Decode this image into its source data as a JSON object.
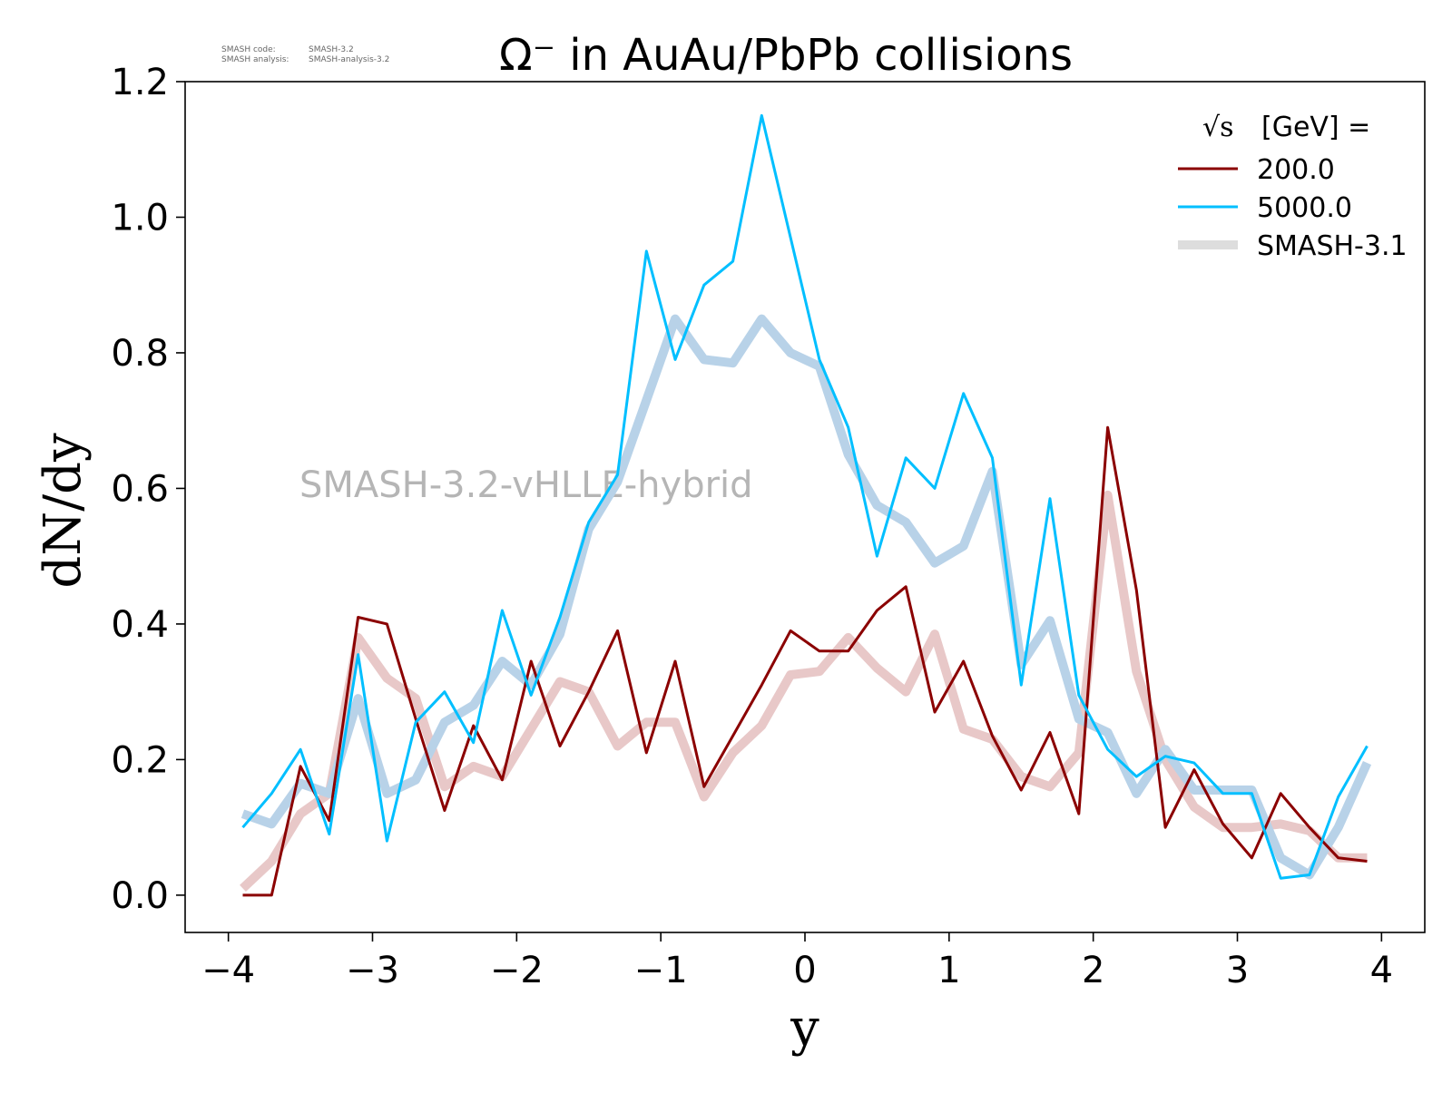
{
  "chart_data": {
    "type": "line",
    "title": "Ω⁻ in AuAu/PbPb collisions",
    "xlabel": "y",
    "ylabel": "dN/dy",
    "xlim": [
      -4.3,
      4.3
    ],
    "ylim": [
      -0.055,
      1.2
    ],
    "xticks": [
      -4,
      -3,
      -2,
      -1,
      0,
      1,
      2,
      3,
      4
    ],
    "xtick_labels": [
      "−4",
      "−3",
      "−2",
      "−1",
      "0",
      "1",
      "2",
      "3",
      "4"
    ],
    "yticks": [
      0.0,
      0.2,
      0.4,
      0.6,
      0.8,
      1.0,
      1.2
    ],
    "ytick_labels": [
      "0.0",
      "0.2",
      "0.4",
      "0.6",
      "0.8",
      "1.0",
      "1.2"
    ],
    "grid": false,
    "legend_position": "top-right",
    "legend_title_symbol": "√s",
    "legend_title_text": "[GeV] =",
    "watermark": "SMASH-3.2-vHLLE-hybrid",
    "version_info": [
      {
        "label": "SMASH code:",
        "value": "SMASH-3.2"
      },
      {
        "label": "SMASH analysis:",
        "value": "SMASH-analysis-3.2"
      }
    ],
    "x": [
      -3.9,
      -3.7,
      -3.5,
      -3.3,
      -3.1,
      -2.9,
      -2.7,
      -2.5,
      -2.3,
      -2.1,
      -1.9,
      -1.7,
      -1.5,
      -1.3,
      -1.1,
      -0.9,
      -0.7,
      -0.5,
      -0.3,
      -0.1,
      0.1,
      0.3,
      0.5,
      0.7,
      0.9,
      1.1,
      1.3,
      1.5,
      1.7,
      1.9,
      2.1,
      2.3,
      2.5,
      2.7,
      2.9,
      3.1,
      3.3,
      3.5,
      3.7,
      3.9
    ],
    "series": [
      {
        "name": "200.0",
        "color": "#8b0000",
        "style": "current",
        "values": [
          0.0,
          0.0,
          0.19,
          0.11,
          0.41,
          0.4,
          0.26,
          0.125,
          0.25,
          0.17,
          0.345,
          0.22,
          0.3,
          0.39,
          0.21,
          0.345,
          0.16,
          0.235,
          0.31,
          0.39,
          0.36,
          0.36,
          0.42,
          0.455,
          0.27,
          0.345,
          0.235,
          0.155,
          0.24,
          0.12,
          0.69,
          0.45,
          0.1,
          0.185,
          0.105,
          0.055,
          0.15,
          0.1,
          0.055,
          0.05
        ]
      },
      {
        "name": "5000.0",
        "color": "#00bfff",
        "style": "current",
        "values": [
          0.1,
          0.15,
          0.215,
          0.09,
          0.355,
          0.08,
          0.255,
          0.3,
          0.225,
          0.42,
          0.295,
          0.41,
          0.55,
          0.62,
          0.95,
          0.79,
          0.9,
          0.935,
          1.15,
          0.97,
          0.79,
          0.69,
          0.5,
          0.645,
          0.6,
          0.74,
          0.645,
          0.31,
          0.585,
          0.295,
          0.215,
          0.175,
          0.205,
          0.195,
          0.15,
          0.15,
          0.025,
          0.03,
          0.145,
          0.22
        ]
      },
      {
        "name": "SMASH-3.1",
        "color": "#dddddd",
        "style": "reference",
        "components": [
          {
            "color": "#e8c8c8",
            "values": [
              0.01,
              0.05,
              0.12,
              0.15,
              0.38,
              0.32,
              0.29,
              0.16,
              0.19,
              0.175,
              0.245,
              0.315,
              0.3,
              0.22,
              0.255,
              0.255,
              0.145,
              0.21,
              0.25,
              0.325,
              0.33,
              0.38,
              0.335,
              0.3,
              0.385,
              0.245,
              0.23,
              0.175,
              0.16,
              0.21,
              0.59,
              0.33,
              0.2,
              0.13,
              0.1,
              0.1,
              0.105,
              0.095,
              0.055,
              0.055
            ]
          },
          {
            "color": "#b8d2e8",
            "values": [
              0.12,
              0.105,
              0.165,
              0.15,
              0.29,
              0.15,
              0.17,
              0.255,
              0.28,
              0.345,
              0.31,
              0.385,
              0.54,
              0.61,
              0.73,
              0.85,
              0.79,
              0.785,
              0.85,
              0.8,
              0.78,
              0.65,
              0.575,
              0.55,
              0.49,
              0.515,
              0.625,
              0.34,
              0.405,
              0.26,
              0.24,
              0.15,
              0.215,
              0.155,
              0.155,
              0.155,
              0.055,
              0.03,
              0.1,
              0.195
            ]
          }
        ]
      }
    ]
  }
}
